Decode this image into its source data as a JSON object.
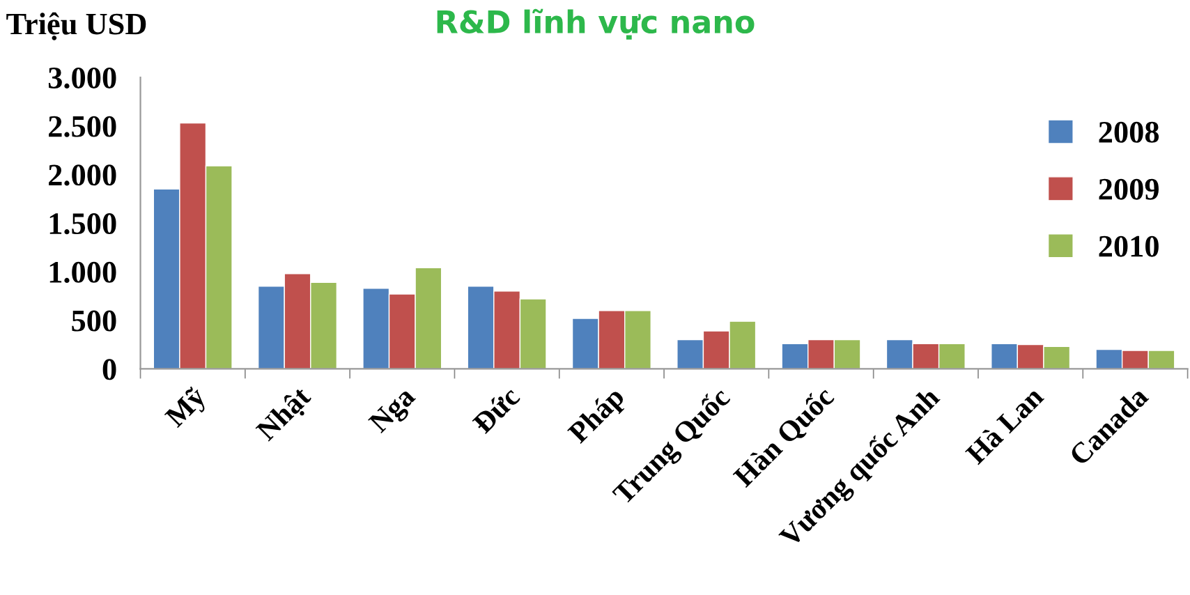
{
  "chart_data": {
    "type": "bar",
    "title": "R&D lĩnh vực nano",
    "ylabel": "Triệu USD",
    "categories": [
      "Mỹ",
      "Nhật",
      "Nga",
      "Đức",
      "Pháp",
      "Trung Quốc",
      "Hàn Quốc",
      "Vương quốc Anh",
      "Hà Lan",
      "Canada"
    ],
    "series": [
      {
        "name": "2008",
        "color": "#4f81bd",
        "values": [
          1850,
          850,
          830,
          850,
          520,
          300,
          260,
          300,
          260,
          200
        ]
      },
      {
        "name": "2009",
        "color": "#c0504d",
        "values": [
          2530,
          980,
          770,
          800,
          600,
          390,
          300,
          260,
          250,
          190
        ]
      },
      {
        "name": "2010",
        "color": "#9bbb59",
        "values": [
          2090,
          890,
          1040,
          720,
          600,
          490,
          300,
          260,
          230,
          190
        ]
      }
    ],
    "ylim": [
      0,
      3000
    ],
    "yticks": [
      0,
      {
        "value": 500,
        "label": "500"
      },
      {
        "value": 1000,
        "label": "1.000"
      },
      {
        "value": 1500,
        "label": "1.500"
      },
      {
        "value": 2000,
        "label": "2.000"
      },
      {
        "value": 2500,
        "label": "2.500"
      },
      {
        "value": 3000,
        "label": "3.000"
      }
    ],
    "grid": false,
    "legend": "right"
  }
}
